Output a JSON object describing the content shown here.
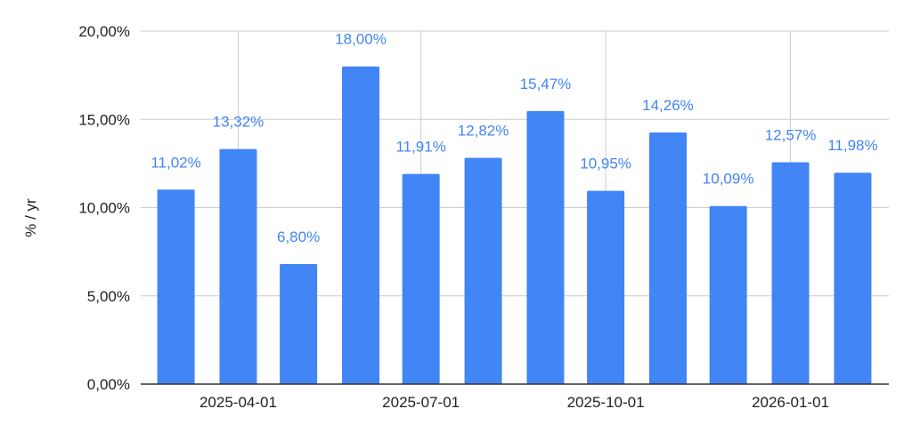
{
  "chart_data": {
    "type": "bar",
    "title": "",
    "xlabel": "",
    "ylabel": "% / yr",
    "ylim": [
      0,
      20
    ],
    "yticks": [
      "0,00%",
      "5,00%",
      "10,00%",
      "15,00%",
      "20,00%"
    ],
    "ytick_values": [
      0,
      5,
      10,
      15,
      20
    ],
    "grid": true,
    "legend": "none",
    "x_axis": {
      "type": "date",
      "ticks": [
        "2025-04-01",
        "2025-07-01",
        "2025-10-01",
        "2026-01-01"
      ]
    },
    "colors": {
      "bar": "#4285f4",
      "data_label": "#4285f4",
      "grid": "#cccccc",
      "axis": "#333333"
    },
    "series": [
      {
        "x": [
          "2025-03-01",
          "2025-04-01",
          "2025-05-01",
          "2025-06-01",
          "2025-07-01",
          "2025-08-01",
          "2025-09-01",
          "2025-10-01",
          "2025-11-01",
          "2025-12-01",
          "2026-01-01",
          "2026-02-01"
        ],
        "values": [
          11.02,
          13.32,
          6.8,
          18.0,
          11.91,
          12.82,
          15.47,
          10.95,
          14.26,
          10.09,
          12.57,
          11.98
        ],
        "labels": [
          "11,02%",
          "13,32%",
          "6,80%",
          "18,00%",
          "11,91%",
          "12,82%",
          "15,47%",
          "10,95%",
          "14,26%",
          "10,09%",
          "12,57%",
          "11,98%"
        ]
      }
    ]
  }
}
